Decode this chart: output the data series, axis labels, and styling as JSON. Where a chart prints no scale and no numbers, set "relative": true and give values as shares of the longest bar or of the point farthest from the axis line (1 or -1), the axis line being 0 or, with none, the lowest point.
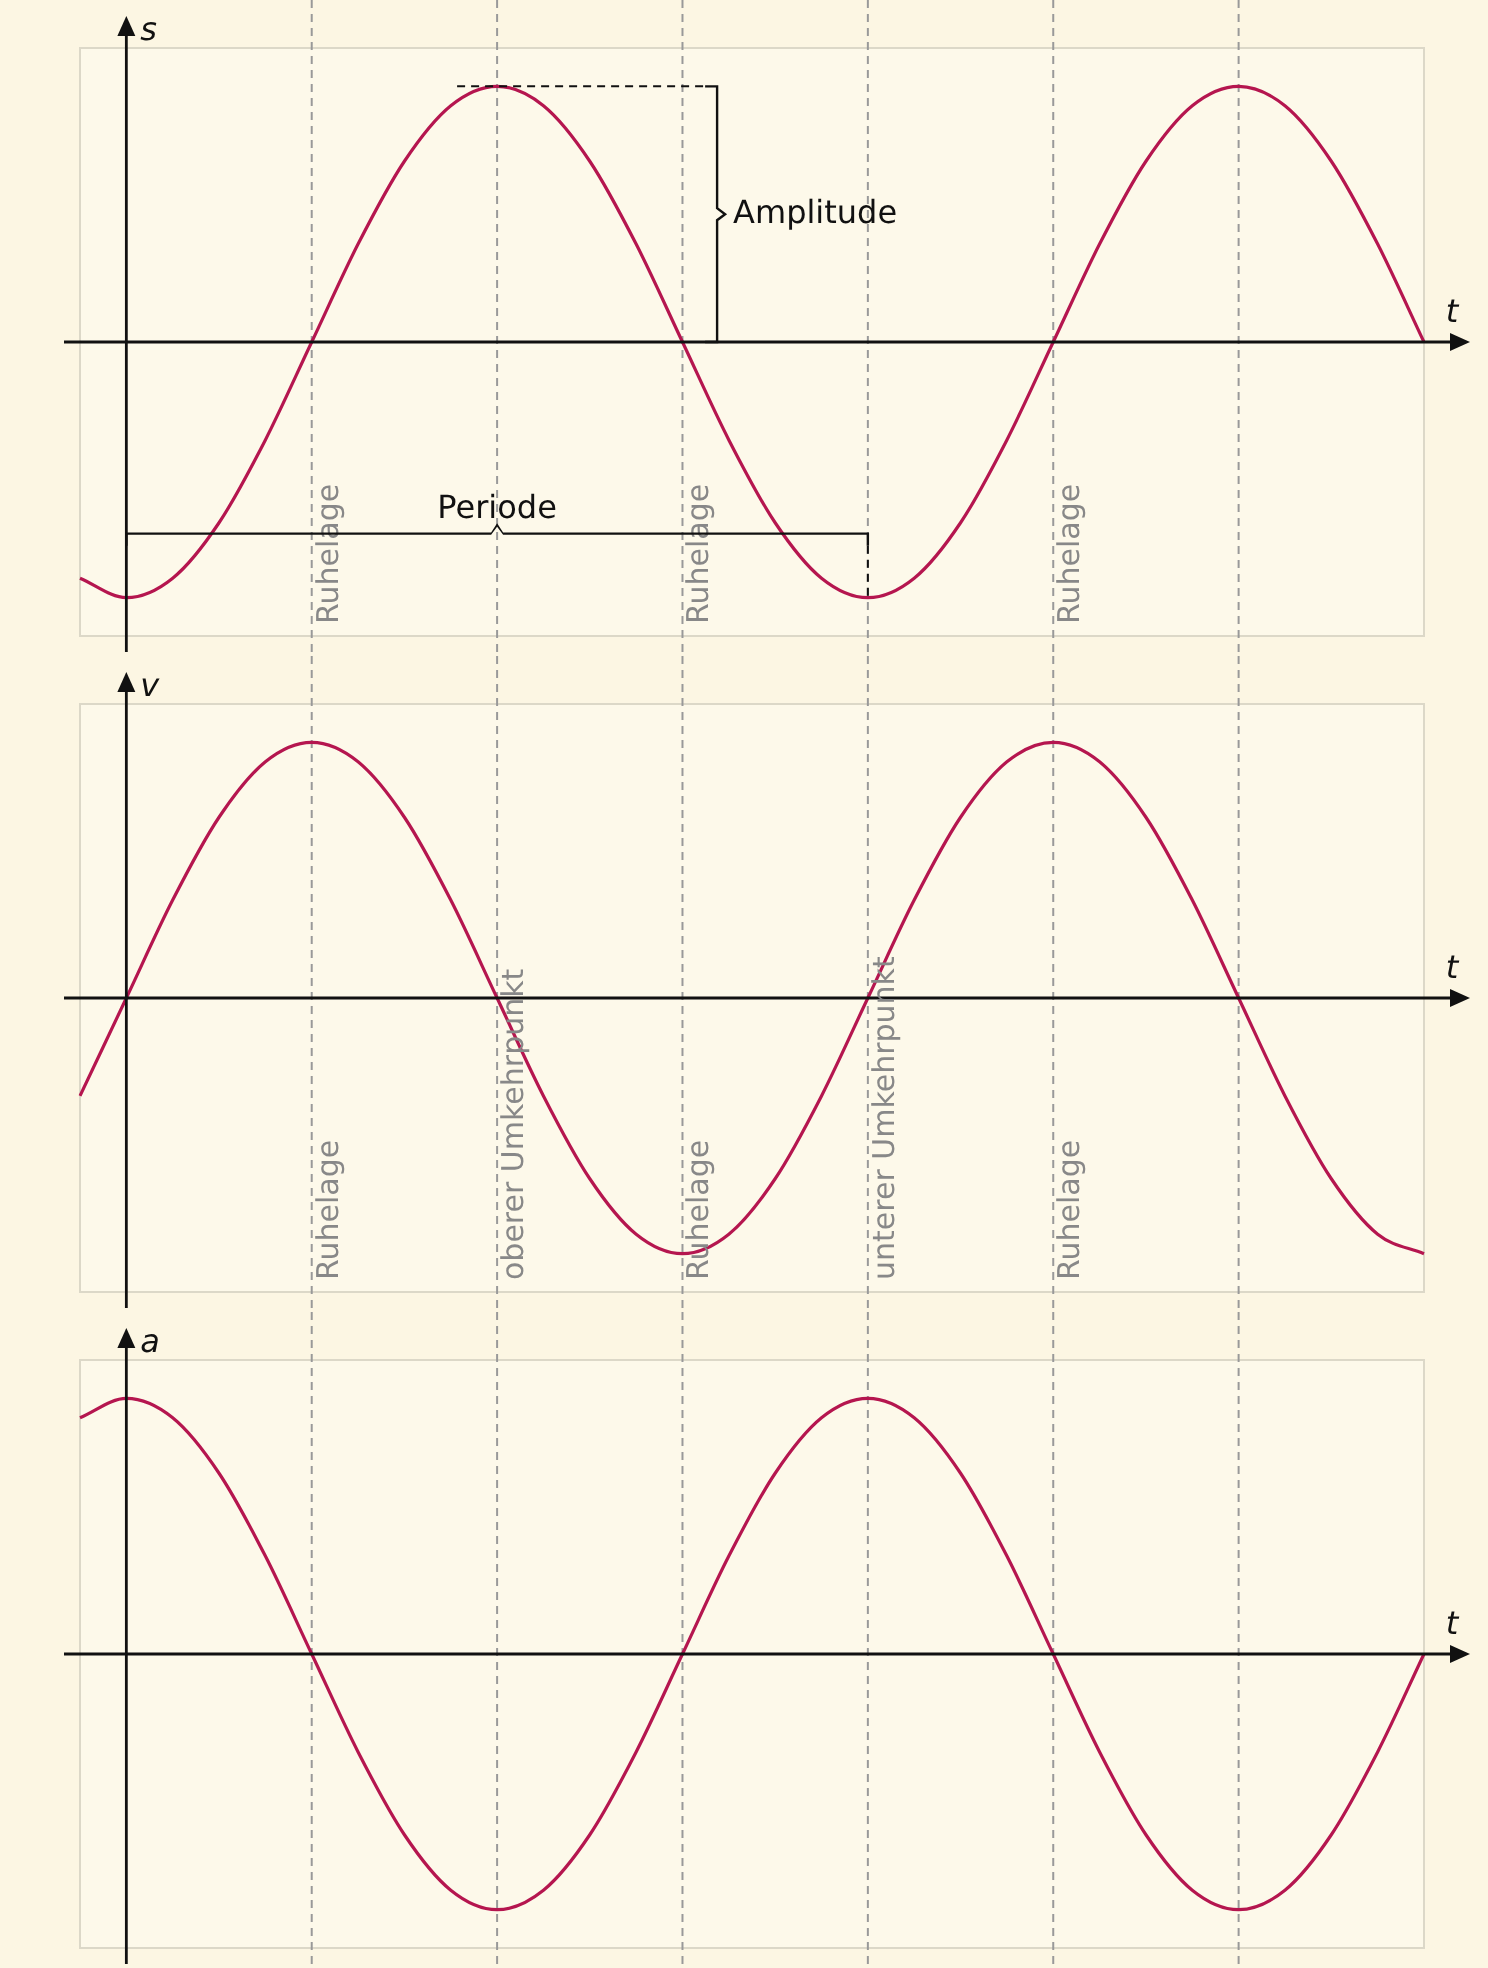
{
  "chart_data": [
    {
      "type": "line",
      "relative": true,
      "xlabel": "t",
      "ylabel": "s",
      "grid": "x",
      "categories": [
        null,
        null,
        null,
        null,
        null,
        null,
        null,
        null,
        null,
        null,
        null,
        null,
        null,
        null,
        null,
        null,
        null,
        null,
        null,
        null,
        null,
        null,
        null,
        null,
        null,
        null,
        null,
        null,
        null,
        null
      ],
      "series": [
        {
          "color": "#b5164f",
          "values": [
            -0.924,
            -1,
            -0.924,
            -0.707,
            -0.383,
            0,
            0.383,
            0.707,
            0.924,
            1,
            0.924,
            0.707,
            0.383,
            0,
            -0.383,
            -0.707,
            -0.924,
            -1,
            -0.924,
            -0.707,
            -0.383,
            0,
            0.383,
            0.707,
            0.924,
            1,
            0.924,
            0.707,
            0.383,
            0
          ]
        }
      ],
      "annotations": [
        "Amplitude",
        "Periode",
        "Ruhelage",
        "Ruhelage",
        "Ruhelage"
      ]
    },
    {
      "type": "line",
      "relative": true,
      "xlabel": "t",
      "ylabel": "v",
      "grid": "x",
      "categories": [
        null,
        null,
        null,
        null,
        null,
        null,
        null,
        null,
        null,
        null,
        null,
        null,
        null,
        null,
        null,
        null,
        null,
        null,
        null,
        null,
        null,
        null,
        null,
        null,
        null,
        null,
        null,
        null,
        null,
        null
      ],
      "series": [
        {
          "color": "#b5164f",
          "values": [
            -0.383,
            0,
            0.383,
            0.707,
            0.924,
            1,
            0.924,
            0.707,
            0.383,
            0,
            -0.383,
            -0.707,
            -0.924,
            -1,
            -0.924,
            -0.707,
            -0.383,
            0,
            0.383,
            0.707,
            0.924,
            1,
            0.924,
            0.707,
            0.383,
            0,
            -0.383,
            -0.707,
            -0.924,
            -1
          ]
        }
      ],
      "annotations": [
        "Ruhelage",
        "oberer Umkehrpunkt",
        "Ruhelage",
        "unterer Umkehrpunkt",
        "Ruhelage"
      ]
    },
    {
      "type": "line",
      "relative": true,
      "xlabel": "t",
      "ylabel": "a",
      "grid": "x",
      "categories": [
        null,
        null,
        null,
        null,
        null,
        null,
        null,
        null,
        null,
        null,
        null,
        null,
        null,
        null,
        null,
        null,
        null,
        null,
        null,
        null,
        null,
        null,
        null,
        null,
        null,
        null,
        null,
        null,
        null,
        null
      ],
      "series": [
        {
          "color": "#b5164f",
          "values": [
            0.924,
            1,
            0.924,
            0.707,
            0.383,
            0,
            -0.383,
            -0.707,
            -0.924,
            -1,
            -0.924,
            -0.707,
            -0.383,
            0,
            0.383,
            0.707,
            0.924,
            1,
            0.924,
            0.707,
            0.383,
            0,
            -0.383,
            -0.707,
            -0.924,
            -1,
            -0.924,
            -0.707,
            -0.383,
            0
          ]
        }
      ]
    }
  ]
}
